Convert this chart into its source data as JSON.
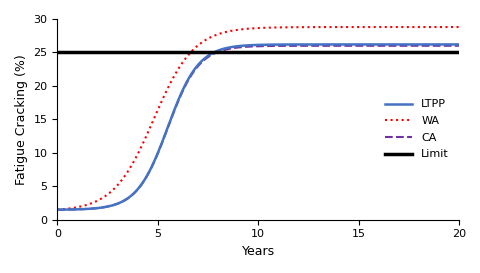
{
  "title": "",
  "xlabel": "Years",
  "ylabel": "Fatigue Cracking (%)",
  "xlim": [
    0,
    20
  ],
  "ylim": [
    0,
    30
  ],
  "xticks": [
    0,
    5,
    10,
    15,
    20
  ],
  "yticks": [
    0,
    5,
    10,
    15,
    20,
    25,
    30
  ],
  "limit_y": 25,
  "limit_color": "#000000",
  "limit_lw": 2.5,
  "LTPP_color": "#4472C4",
  "WA_color": "#FF0000",
  "CA_color": "#7030A0",
  "background_color": "#ffffff",
  "legend_labels": [
    "LTPP",
    "WA",
    "CA",
    "Limit"
  ],
  "figsize": [
    4.81,
    2.73
  ],
  "dpi": 100
}
